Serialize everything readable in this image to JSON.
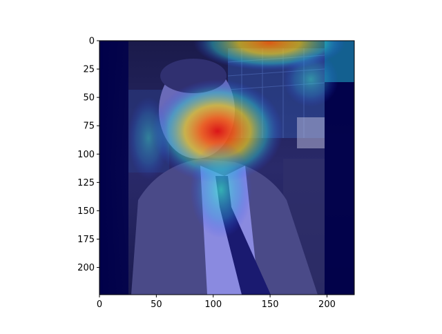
{
  "figure": {
    "image": {
      "type": "saliency-heatmap-overlay",
      "colormap": "jet",
      "base_subject": "man in suit and tie, city night background"
    },
    "x_axis": {
      "range": [
        0,
        224
      ],
      "ticks": [
        0,
        50,
        100,
        150,
        200
      ],
      "tick_labels": [
        "0",
        "50",
        "100",
        "150",
        "200"
      ]
    },
    "y_axis": {
      "range": [
        0,
        224
      ],
      "inverted": true,
      "ticks": [
        0,
        25,
        50,
        75,
        100,
        125,
        150,
        175,
        200
      ],
      "tick_labels": [
        "0",
        "25",
        "50",
        "75",
        "100",
        "125",
        "150",
        "175",
        "200"
      ]
    },
    "colors": {
      "background_dark": "#00004a",
      "heat_red": "#e01010",
      "heat_yellow": "#f0d020",
      "heat_cyan": "#30d0d0"
    }
  }
}
